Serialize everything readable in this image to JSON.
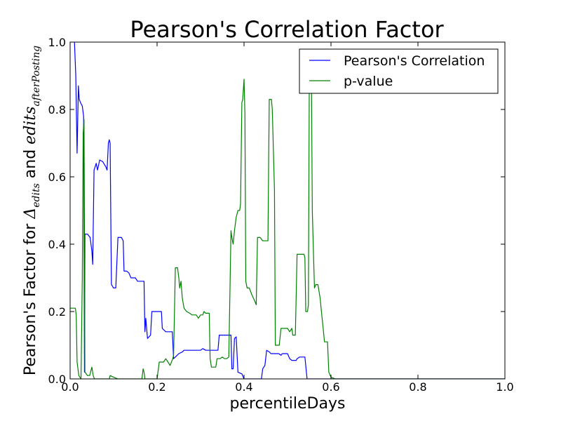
{
  "chart_data": {
    "type": "line",
    "title": "Pearson's Correlation Factor",
    "xlabel": "percentileDays",
    "ylabel": {
      "prefix": "Pearson's Factor for ",
      "delta_symbol": "Δ",
      "delta_sub": "edits",
      "joiner": " and ",
      "edits_word": "edits",
      "edits_sub": "afterPosting"
    },
    "xlim": [
      0.0,
      1.0
    ],
    "ylim": [
      0.0,
      1.0
    ],
    "x_ticks": [
      "0.0",
      "0.2",
      "0.4",
      "0.6",
      "0.8",
      "1.0"
    ],
    "y_ticks": [
      "0.0",
      "0.2",
      "0.4",
      "0.6",
      "0.8",
      "1.0"
    ],
    "legend_position": "top-right",
    "grid": false,
    "series": [
      {
        "name": "Pearson's Correlation",
        "color": "#0000ff",
        "points": [
          [
            0.01,
            1.0
          ],
          [
            0.013,
            0.9
          ],
          [
            0.016,
            0.67
          ],
          [
            0.019,
            0.87
          ],
          [
            0.021,
            0.83
          ],
          [
            0.024,
            0.82
          ],
          [
            0.028,
            0.81
          ],
          [
            0.031,
            0.78
          ],
          [
            0.033,
            0.02
          ],
          [
            0.034,
            0.43
          ],
          [
            0.04,
            0.43
          ],
          [
            0.046,
            0.42
          ],
          [
            0.05,
            0.38
          ],
          [
            0.052,
            0.34
          ],
          [
            0.055,
            0.62
          ],
          [
            0.06,
            0.64
          ],
          [
            0.063,
            0.62
          ],
          [
            0.068,
            0.65
          ],
          [
            0.075,
            0.645
          ],
          [
            0.082,
            0.63
          ],
          [
            0.085,
            0.62
          ],
          [
            0.088,
            0.7
          ],
          [
            0.09,
            0.71
          ],
          [
            0.092,
            0.7
          ],
          [
            0.095,
            0.28
          ],
          [
            0.1,
            0.27
          ],
          [
            0.105,
            0.27
          ],
          [
            0.11,
            0.42
          ],
          [
            0.118,
            0.42
          ],
          [
            0.122,
            0.41
          ],
          [
            0.124,
            0.32
          ],
          [
            0.13,
            0.32
          ],
          [
            0.135,
            0.315
          ],
          [
            0.14,
            0.3
          ],
          [
            0.15,
            0.3
          ],
          [
            0.155,
            0.29
          ],
          [
            0.17,
            0.29
          ],
          [
            0.172,
            0.14
          ],
          [
            0.174,
            0.18
          ],
          [
            0.178,
            0.12
          ],
          [
            0.185,
            0.13
          ],
          [
            0.188,
            0.2
          ],
          [
            0.2,
            0.2
          ],
          [
            0.21,
            0.2
          ],
          [
            0.212,
            0.15
          ],
          [
            0.22,
            0.14
          ],
          [
            0.235,
            0.14
          ],
          [
            0.238,
            0.06
          ],
          [
            0.25,
            0.075
          ],
          [
            0.258,
            0.08
          ],
          [
            0.262,
            0.085
          ],
          [
            0.3,
            0.085
          ],
          [
            0.305,
            0.09
          ],
          [
            0.312,
            0.085
          ],
          [
            0.34,
            0.085
          ],
          [
            0.343,
            0.13
          ],
          [
            0.37,
            0.13
          ],
          [
            0.372,
            0.03
          ],
          [
            0.375,
            0.03
          ],
          [
            0.378,
            0.12
          ],
          [
            0.382,
            0.125
          ],
          [
            0.386,
            0.02
          ],
          [
            0.395,
            0.015
          ],
          [
            0.4,
            0.0
          ],
          [
            0.44,
            0.0
          ],
          [
            0.443,
            0.03
          ],
          [
            0.448,
            0.04
          ],
          [
            0.452,
            0.085
          ],
          [
            0.458,
            0.08
          ],
          [
            0.462,
            0.075
          ],
          [
            0.48,
            0.075
          ],
          [
            0.485,
            0.07
          ],
          [
            0.488,
            0.075
          ],
          [
            0.5,
            0.075
          ],
          [
            0.505,
            0.06
          ],
          [
            0.51,
            0.055
          ],
          [
            0.52,
            0.055
          ],
          [
            0.522,
            0.06
          ],
          [
            0.528,
            0.065
          ],
          [
            0.54,
            0.065
          ],
          [
            0.545,
            0.0
          ],
          [
            0.56,
            0.0
          ],
          [
            1.0,
            0.0
          ]
        ]
      },
      {
        "name": "p-value",
        "color": "#008000",
        "points": [
          [
            0.0,
            0.21
          ],
          [
            0.012,
            0.21
          ],
          [
            0.014,
            0.19
          ],
          [
            0.016,
            0.05
          ],
          [
            0.02,
            0.01
          ],
          [
            0.025,
            0.0
          ],
          [
            0.028,
            0.3
          ],
          [
            0.03,
            0.73
          ],
          [
            0.032,
            0.77
          ],
          [
            0.034,
            0.02
          ],
          [
            0.04,
            0.01
          ],
          [
            0.045,
            0.01
          ],
          [
            0.05,
            0.035
          ],
          [
            0.053,
            0.01
          ],
          [
            0.056,
            0.0
          ],
          [
            0.07,
            0.0
          ],
          [
            0.09,
            0.0
          ],
          [
            0.092,
            0.01
          ],
          [
            0.1,
            0.005
          ],
          [
            0.11,
            0.0
          ],
          [
            0.13,
            0.0
          ],
          [
            0.14,
            0.0
          ],
          [
            0.155,
            0.0
          ],
          [
            0.165,
            0.0
          ],
          [
            0.168,
            0.03
          ],
          [
            0.17,
            0.02
          ],
          [
            0.172,
            0.0
          ],
          [
            0.18,
            0.0
          ],
          [
            0.19,
            0.0
          ],
          [
            0.195,
            0.0
          ],
          [
            0.2,
            0.0
          ],
          [
            0.205,
            0.05
          ],
          [
            0.21,
            0.05
          ],
          [
            0.215,
            0.05
          ],
          [
            0.22,
            0.06
          ],
          [
            0.225,
            0.05
          ],
          [
            0.23,
            0.04
          ],
          [
            0.233,
            0.05
          ],
          [
            0.236,
            0.06
          ],
          [
            0.238,
            0.07
          ],
          [
            0.242,
            0.33
          ],
          [
            0.247,
            0.33
          ],
          [
            0.25,
            0.3
          ],
          [
            0.252,
            0.27
          ],
          [
            0.255,
            0.29
          ],
          [
            0.258,
            0.24
          ],
          [
            0.262,
            0.21
          ],
          [
            0.268,
            0.2
          ],
          [
            0.275,
            0.195
          ],
          [
            0.28,
            0.19
          ],
          [
            0.29,
            0.19
          ],
          [
            0.295,
            0.18
          ],
          [
            0.3,
            0.19
          ],
          [
            0.305,
            0.19
          ],
          [
            0.308,
            0.2
          ],
          [
            0.312,
            0.195
          ],
          [
            0.32,
            0.195
          ],
          [
            0.322,
            0.06
          ],
          [
            0.325,
            0.035
          ],
          [
            0.335,
            0.035
          ],
          [
            0.338,
            0.06
          ],
          [
            0.345,
            0.06
          ],
          [
            0.35,
            0.065
          ],
          [
            0.355,
            0.06
          ],
          [
            0.36,
            0.06
          ],
          [
            0.365,
            0.065
          ],
          [
            0.37,
            0.44
          ],
          [
            0.372,
            0.42
          ],
          [
            0.375,
            0.4
          ],
          [
            0.378,
            0.44
          ],
          [
            0.382,
            0.48
          ],
          [
            0.386,
            0.5
          ],
          [
            0.39,
            0.5
          ],
          [
            0.392,
            0.52
          ],
          [
            0.395,
            0.82
          ],
          [
            0.397,
            0.83
          ],
          [
            0.4,
            0.89
          ],
          [
            0.402,
            0.79
          ],
          [
            0.404,
            0.29
          ],
          [
            0.407,
            0.27
          ],
          [
            0.412,
            0.27
          ],
          [
            0.418,
            0.25
          ],
          [
            0.425,
            0.23
          ],
          [
            0.428,
            0.22
          ],
          [
            0.431,
            0.42
          ],
          [
            0.437,
            0.42
          ],
          [
            0.443,
            0.41
          ],
          [
            0.45,
            0.41
          ],
          [
            0.455,
            0.41
          ],
          [
            0.458,
            0.83
          ],
          [
            0.463,
            0.83
          ],
          [
            0.465,
            0.8
          ],
          [
            0.47,
            0.56
          ],
          [
            0.472,
            0.1
          ],
          [
            0.476,
            0.1
          ],
          [
            0.481,
            0.1
          ],
          [
            0.485,
            0.15
          ],
          [
            0.5,
            0.15
          ],
          [
            0.505,
            0.14
          ],
          [
            0.51,
            0.15
          ],
          [
            0.512,
            0.13
          ],
          [
            0.518,
            0.13
          ],
          [
            0.522,
            0.37
          ],
          [
            0.535,
            0.37
          ],
          [
            0.538,
            0.37
          ],
          [
            0.54,
            0.36
          ],
          [
            0.542,
            0.2
          ],
          [
            0.546,
            0.2
          ],
          [
            0.548,
            0.22
          ],
          [
            0.55,
            0.86
          ],
          [
            0.552,
            0.88
          ],
          [
            0.555,
            0.9
          ],
          [
            0.557,
            0.5
          ],
          [
            0.56,
            0.36
          ],
          [
            0.562,
            0.27
          ],
          [
            0.565,
            0.28
          ],
          [
            0.57,
            0.28
          ],
          [
            0.575,
            0.24
          ],
          [
            0.578,
            0.2
          ],
          [
            0.582,
            0.15
          ],
          [
            0.585,
            0.11
          ],
          [
            0.592,
            0.11
          ],
          [
            0.595,
            0.02
          ],
          [
            0.6,
            0.005
          ],
          [
            0.61,
            0.0
          ],
          [
            1.0,
            0.0
          ]
        ]
      }
    ]
  }
}
